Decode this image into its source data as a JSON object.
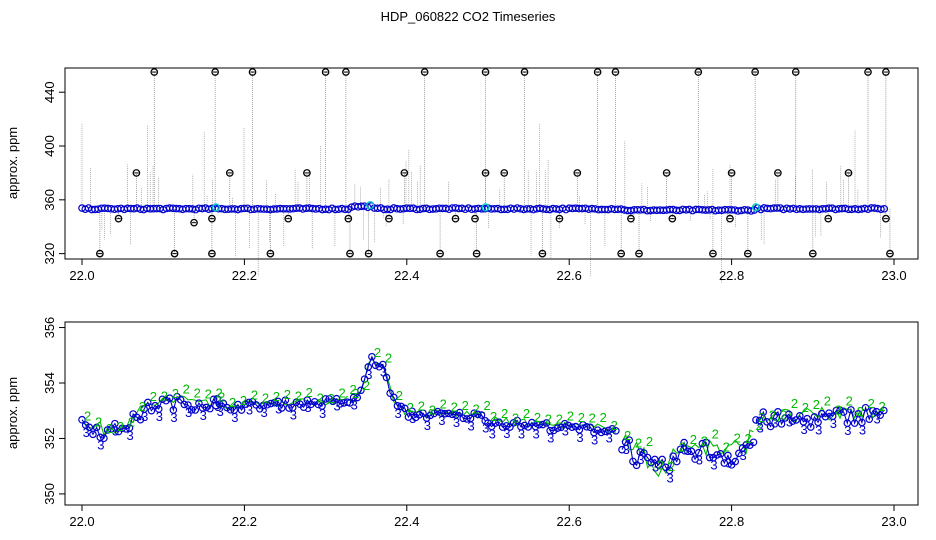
{
  "title": "HDP_060822  CO2 Timeseries",
  "colors": {
    "raw_line": "#7f7f7f",
    "outlier_marker": "#000000",
    "mean_marker": "#0000cc",
    "flag_marker": "#00c8c8",
    "label_2": "#00bb00",
    "label_3": "#0000cc"
  },
  "chart_data": [
    {
      "type": "scatter",
      "title": "",
      "xlabel": "",
      "ylabel": "approx. ppm",
      "xlim": [
        22.0,
        23.0
      ],
      "ylim": [
        316,
        458
      ],
      "x_ticks": [
        "22.0",
        "22.2",
        "22.4",
        "22.6",
        "22.8",
        "23.0"
      ],
      "y_ticks": [
        "320",
        "360",
        "400",
        "440"
      ],
      "series": [
        {
          "kind": "baseline-mean",
          "start": 22.0,
          "end": 22.99,
          "step": 0.004,
          "segments": [
            [
              22.0,
              22.33,
              353.3
            ],
            [
              22.33,
              22.36,
              355
            ],
            [
              22.36,
              22.5,
              353.4
            ],
            [
              22.5,
              22.665,
              353.3
            ],
            [
              22.665,
              22.83,
              352.3
            ],
            [
              22.83,
              22.99,
              353.4
            ]
          ]
        },
        {
          "kind": "outliers-high-455",
          "x": [
            22.089,
            22.164,
            22.21,
            22.3,
            22.325,
            22.422,
            22.497,
            22.545,
            22.635,
            22.657,
            22.759,
            22.829,
            22.879,
            22.968,
            22.99
          ]
        },
        {
          "kind": "outliers-380",
          "x": [
            22.067,
            22.182,
            22.277,
            22.397,
            22.497,
            22.52,
            22.61,
            22.72,
            22.8,
            22.857,
            22.944
          ]
        },
        {
          "kind": "outliers-346",
          "x": [
            22.045,
            22.16,
            22.254,
            22.328,
            22.378,
            22.46,
            22.484,
            22.588,
            22.676,
            22.727,
            22.798,
            22.919,
            22.99
          ]
        },
        {
          "kind": "outliers-320",
          "x": [
            22.022,
            22.114,
            22.16,
            22.232,
            22.33,
            22.353,
            22.441,
            22.486,
            22.567,
            22.664,
            22.686,
            22.777,
            22.82,
            22.9,
            22.995
          ]
        },
        {
          "kind": "outliers-343",
          "x": [
            22.138
          ]
        },
        {
          "kind": "flags",
          "x": [
            22.165,
            22.355,
            22.497,
            22.83
          ]
        }
      ]
    },
    {
      "type": "scatter",
      "title": "",
      "xlabel": "",
      "ylabel": "approx. ppm",
      "xlim": [
        22.0,
        23.0
      ],
      "ylim": [
        349.6,
        356.2
      ],
      "x_ticks": [
        "22.0",
        "22.2",
        "22.4",
        "22.6",
        "22.8",
        "23.0"
      ],
      "y_ticks": [
        "350",
        "352",
        "354",
        "356"
      ],
      "point_labels": [
        "2",
        "3"
      ],
      "segments": [
        {
          "x": [
            22.0,
            22.03,
            22.06,
            22.085,
            22.1,
            22.17
          ],
          "y": [
            352.6,
            352.2,
            352.6,
            353.2,
            353.3,
            353.3
          ],
          "noise": 0.5
        },
        {
          "x": [
            22.165,
            22.33
          ],
          "y": [
            353.15,
            353.35
          ],
          "noise": 0.3
        },
        {
          "x": [
            22.33,
            22.345,
            22.355,
            22.37,
            22.385,
            22.4,
            22.5
          ],
          "y": [
            353.2,
            353.8,
            354.9,
            354.6,
            353.3,
            352.9,
            352.8
          ],
          "noise": 0.3
        },
        {
          "x": [
            22.5,
            22.55,
            22.6,
            22.66
          ],
          "y": [
            352.6,
            352.5,
            352.4,
            352.3
          ],
          "noise": 0.3
        },
        {
          "x": [
            22.665,
            22.69,
            22.71,
            22.75,
            22.8,
            22.83
          ],
          "y": [
            352.0,
            351.2,
            350.8,
            351.7,
            351.4,
            352.0
          ],
          "noise": 0.8
        },
        {
          "x": [
            22.83,
            22.9,
            22.99
          ],
          "y": [
            352.7,
            352.7,
            353.0
          ],
          "noise": 0.6
        }
      ]
    }
  ]
}
